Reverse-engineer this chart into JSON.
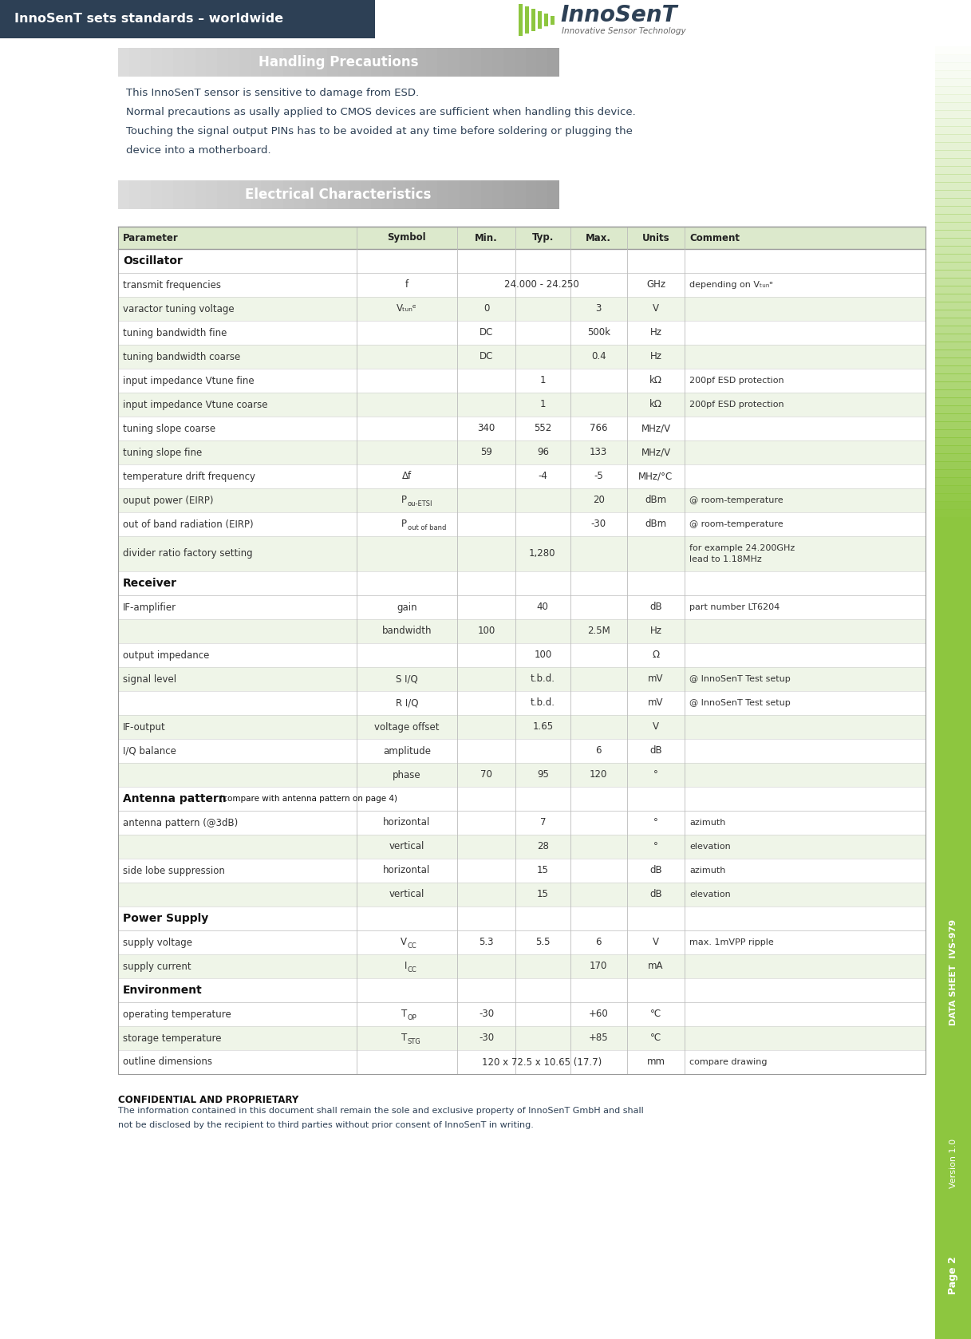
{
  "header_bg": "#2d4055",
  "header_text": "InnoSenT sets standards – worldwide",
  "header_text_color": "#ffffff",
  "page_bg": "#ffffff",
  "side_bar_color": "#8dc63f",
  "side_text_1": "DATA SHEET  IVS-979",
  "side_text_2": "Version 1.0",
  "side_text_3": "Page 2",
  "handling_title": "Handling Precautions",
  "handling_text_color": "#2d4055",
  "handling_text": "This InnoSenT sensor is sensitive to damage from ESD.\nNormal precautions as usally applied to CMOS devices are sufficient when handling this device.\nTouching the signal output PINs has to be avoided at any time before soldering or plugging the\ndevice into a motherboard.",
  "elec_title": "Electrical Characteristics",
  "table_header_bg": "#dce9cc",
  "table_row_alt_bg": "#eff5e8",
  "table_row_bg": "#ffffff",
  "table_border": "#bbbbbb",
  "table_text_color": "#333333",
  "col_headers": [
    "Parameter",
    "Symbol",
    "Min.",
    "Typ.",
    "Max.",
    "Units",
    "Comment"
  ],
  "confidential_title": "CONFIDENTIAL AND PROPRIETARY",
  "confidential_text": "The information contained in this document shall remain the sole and exclusive property of InnoSenT GmbH and shall\nnot be disclosed by the recipient to third parties without prior consent of InnoSenT in writing.",
  "dark_color": "#2d4055",
  "rows": [
    {
      "type": "section",
      "text": "Oscillator"
    },
    {
      "type": "data",
      "param": "transmit frequencies",
      "symbol": "f",
      "min": "",
      "typ": "24.000 - 24.250",
      "max": "",
      "units": "GHz",
      "comment": "depending on Vₜᵤₙᵉ",
      "alt": false,
      "span_typ": true
    },
    {
      "type": "data",
      "param": "varactor tuning voltage",
      "symbol": "Vₜᵤₙᵉ",
      "min": "0",
      "typ": "",
      "max": "3",
      "units": "V",
      "comment": "",
      "alt": true,
      "span_typ": false
    },
    {
      "type": "data",
      "param": "tuning bandwidth fine",
      "symbol": "",
      "min": "DC",
      "typ": "",
      "max": "500k",
      "units": "Hz",
      "comment": "",
      "alt": false,
      "span_typ": false
    },
    {
      "type": "data",
      "param": "tuning bandwidth coarse",
      "symbol": "",
      "min": "DC",
      "typ": "",
      "max": "0.4",
      "units": "Hz",
      "comment": "",
      "alt": true,
      "span_typ": false
    },
    {
      "type": "data",
      "param": "input impedance Vtune fine",
      "symbol": "",
      "min": "",
      "typ": "1",
      "max": "",
      "units": "kΩ",
      "comment": "200pf ESD protection",
      "alt": false,
      "span_typ": false
    },
    {
      "type": "data",
      "param": "input impedance Vtune coarse",
      "symbol": "",
      "min": "",
      "typ": "1",
      "max": "",
      "units": "kΩ",
      "comment": "200pf ESD protection",
      "alt": true,
      "span_typ": false
    },
    {
      "type": "data",
      "param": "tuning slope coarse",
      "symbol": "",
      "min": "340",
      "typ": "552",
      "max": "766",
      "units": "MHz/V",
      "comment": "",
      "alt": false,
      "span_typ": false
    },
    {
      "type": "data",
      "param": "tuning slope fine",
      "symbol": "",
      "min": "59",
      "typ": "96",
      "max": "133",
      "units": "MHz/V",
      "comment": "",
      "alt": true,
      "span_typ": false
    },
    {
      "type": "data",
      "param": "temperature drift frequency",
      "symbol": "Δf",
      "min": "",
      "typ": "-4",
      "max": "-5",
      "units": "MHz/°C",
      "comment": "",
      "alt": false,
      "span_typ": false
    },
    {
      "type": "data",
      "param": "ouput power (EIRP)",
      "symbol": "P_ou-ETSI",
      "min": "",
      "typ": "",
      "max": "20",
      "units": "dBm",
      "comment": "@ room-temperature",
      "alt": true,
      "span_typ": false
    },
    {
      "type": "data",
      "param": "out of band radiation (EIRP)",
      "symbol": "P_out of band",
      "min": "",
      "typ": "",
      "max": "-30",
      "units": "dBm",
      "comment": "@ room-temperature",
      "alt": false,
      "span_typ": false
    },
    {
      "type": "data2",
      "param": "divider ratio factory setting",
      "symbol": "",
      "min": "",
      "typ": "1,280",
      "max": "",
      "units": "",
      "comment": "for example 24.200GHz\nlead to 1.18MHz",
      "alt": true,
      "span_typ": true
    },
    {
      "type": "section",
      "text": "Receiver"
    },
    {
      "type": "data",
      "param": "IF-amplifier",
      "symbol": "gain",
      "min": "",
      "typ": "40",
      "max": "",
      "units": "dB",
      "comment": "part number LT6204",
      "alt": false,
      "span_typ": false
    },
    {
      "type": "data",
      "param": "",
      "symbol": "bandwidth",
      "min": "100",
      "typ": "",
      "max": "2.5M",
      "units": "Hz",
      "comment": "",
      "alt": true,
      "span_typ": false
    },
    {
      "type": "data",
      "param": "output impedance",
      "symbol": "",
      "min": "",
      "typ": "100",
      "max": "",
      "units": "Ω",
      "comment": "",
      "alt": false,
      "span_typ": false
    },
    {
      "type": "data",
      "param": "signal level",
      "symbol": "S I/Q",
      "min": "",
      "typ": "t.b.d.",
      "max": "",
      "units": "mV",
      "comment": "@ InnoSenT Test setup",
      "alt": true,
      "span_typ": false
    },
    {
      "type": "data",
      "param": "",
      "symbol": "R I/Q",
      "min": "",
      "typ": "t.b.d.",
      "max": "",
      "units": "mV",
      "comment": "@ InnoSenT Test setup",
      "alt": false,
      "span_typ": false
    },
    {
      "type": "data",
      "param": "IF-output",
      "symbol": "voltage offset",
      "min": "",
      "typ": "1.65",
      "max": "",
      "units": "V",
      "comment": "",
      "alt": true,
      "span_typ": false
    },
    {
      "type": "data",
      "param": "I/Q balance",
      "symbol": "amplitude",
      "min": "",
      "typ": "",
      "max": "6",
      "units": "dB",
      "comment": "",
      "alt": false,
      "span_typ": false
    },
    {
      "type": "data",
      "param": "",
      "symbol": "phase",
      "min": "70",
      "typ": "95",
      "max": "120",
      "units": "°",
      "comment": "",
      "alt": true,
      "span_typ": false
    },
    {
      "type": "section2",
      "text": "Antenna pattern",
      "subtext": "(compare with antenna pattern on page 4)"
    },
    {
      "type": "data",
      "param": "antenna pattern (@3dB)",
      "symbol": "horizontal",
      "min": "",
      "typ": "7",
      "max": "",
      "units": "°",
      "comment": "azimuth",
      "alt": false,
      "span_typ": false
    },
    {
      "type": "data",
      "param": "",
      "symbol": "vertical",
      "min": "",
      "typ": "28",
      "max": "",
      "units": "°",
      "comment": "elevation",
      "alt": true,
      "span_typ": false
    },
    {
      "type": "data",
      "param": "side lobe suppression",
      "symbol": "horizontal",
      "min": "",
      "typ": "15",
      "max": "",
      "units": "dB",
      "comment": "azimuth",
      "alt": false,
      "span_typ": false
    },
    {
      "type": "data",
      "param": "",
      "symbol": "vertical",
      "min": "",
      "typ": "15",
      "max": "",
      "units": "dB",
      "comment": "elevation",
      "alt": true,
      "span_typ": false
    },
    {
      "type": "section",
      "text": "Power Supply"
    },
    {
      "type": "data",
      "param": "supply voltage",
      "symbol": "V_CC",
      "min": "5.3",
      "typ": "5.5",
      "max": "6",
      "units": "V",
      "comment": "max. 1mVPP ripple",
      "alt": false,
      "span_typ": false
    },
    {
      "type": "data",
      "param": "supply current",
      "symbol": "I_CC",
      "min": "",
      "typ": "",
      "max": "170",
      "units": "mA",
      "comment": "",
      "alt": true,
      "span_typ": false
    },
    {
      "type": "section",
      "text": "Environment"
    },
    {
      "type": "data",
      "param": "operating temperature",
      "symbol": "T_OP",
      "min": "-30",
      "typ": "",
      "max": "+60",
      "units": "°C",
      "comment": "",
      "alt": false,
      "span_typ": false
    },
    {
      "type": "data",
      "param": "storage temperature",
      "symbol": "T_STG",
      "min": "-30",
      "typ": "",
      "max": "+85",
      "units": "°C",
      "comment": "",
      "alt": true,
      "span_typ": false
    },
    {
      "type": "data",
      "param": "outline dimensions",
      "symbol": "",
      "min": "",
      "typ": "120 x 72.5 x 10.65 (17.7)",
      "max": "",
      "units": "mm",
      "comment": "compare drawing",
      "alt": false,
      "span_typ": true
    }
  ]
}
